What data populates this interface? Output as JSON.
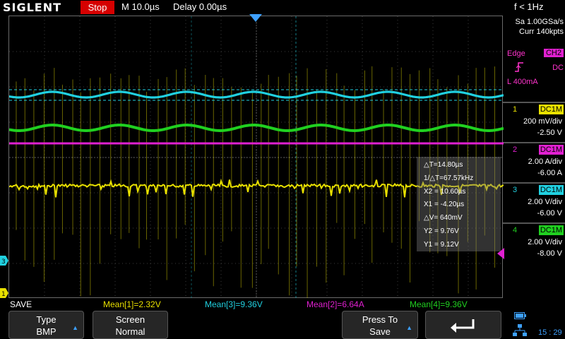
{
  "header": {
    "logo": "SIGLENT",
    "run_state": "Stop",
    "timebase": "M 10.0µs",
    "delay": "Delay 0.00µs",
    "freq": "f < 1Hz"
  },
  "acquisition": {
    "sample_rate": "Sa 1.00GSa/s",
    "memory": "Curr 140kpts"
  },
  "trigger": {
    "type": "Edge",
    "source": "CH2",
    "slope_icon": "rising-edge-icon",
    "coupling": "DC",
    "level": "L  400mA"
  },
  "channels": [
    {
      "num": "1",
      "coupling": "DC1M",
      "scale": "200 mV/div",
      "offset": "-2.50 V",
      "color": "#e8e000"
    },
    {
      "num": "2",
      "coupling": "DC1M",
      "scale": "2.00 A/div",
      "offset": "-6.00 A",
      "color": "#e020d0"
    },
    {
      "num": "3",
      "coupling": "DC1M",
      "scale": "2.00 V/div",
      "offset": "-6.00 V",
      "color": "#20d0e0"
    },
    {
      "num": "4",
      "coupling": "DC1M",
      "scale": "2.00 V/div",
      "offset": "-8.00 V",
      "color": "#20d020"
    }
  ],
  "cursor": {
    "dT": "△T=14.80µs",
    "inv_dT": "1/△T=67.57kHz",
    "x2": "X2 = 10.60µs",
    "x1": "X1 = -4.20µs",
    "dV": "△V= 640mV",
    "y2": "Y2 = 9.76V",
    "y1": "Y1 = 9.12V"
  },
  "measurements": {
    "save": "SAVE",
    "mean1": "Mean[1]=2.32V",
    "mean3": "Mean[3]=9.36V",
    "mean2": "Mean[2]=6.64A",
    "mean4": "Mean[4]=9.36V"
  },
  "softkeys": {
    "type_label": "Type",
    "type_value": "BMP",
    "screen_label": "Screen",
    "screen_value": "Normal",
    "press_label": "Press To",
    "press_value": "Save",
    "back_icon": "return-arrow-icon"
  },
  "status": {
    "clock": "15 : 29"
  },
  "colors": {
    "ch1": "#e8e000",
    "ch2": "#e020d0",
    "ch3": "#20d0e0",
    "ch4": "#20d020",
    "run_stop": "#d60000",
    "accent": "#3da0ff"
  }
}
